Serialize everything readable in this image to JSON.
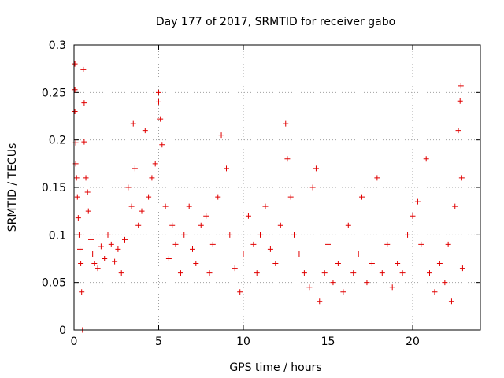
{
  "chart_data": {
    "type": "scatter",
    "title": "Day 177 of 2017, SRMTID for receiver gabo",
    "xlabel": "GPS time / hours",
    "ylabel": "SRMTID / TECUs",
    "xlim": [
      0,
      24
    ],
    "ylim": [
      0,
      0.3
    ],
    "x_ticks": [
      0,
      5,
      10,
      15,
      20
    ],
    "x_tick_labels": [
      "0",
      "5",
      "10",
      "15",
      "20"
    ],
    "y_ticks": [
      0,
      0.05,
      0.1,
      0.15,
      0.2,
      0.25,
      0.3
    ],
    "y_tick_labels": [
      "0",
      "0.05",
      "0.1",
      "0.15",
      "0.2",
      "0.25",
      "0.3"
    ],
    "grid": true,
    "marker": "+",
    "series_color": "#e00000",
    "sample_points": [
      {
        "x": 0.05,
        "y": 0.28
      },
      {
        "x": 0.05,
        "y": 0.253
      },
      {
        "x": 0.05,
        "y": 0.23
      },
      {
        "x": 0.1,
        "y": 0.197
      },
      {
        "x": 0.1,
        "y": 0.175
      },
      {
        "x": 0.15,
        "y": 0.16
      },
      {
        "x": 0.2,
        "y": 0.14
      },
      {
        "x": 0.25,
        "y": 0.118
      },
      {
        "x": 0.3,
        "y": 0.1
      },
      {
        "x": 0.35,
        "y": 0.085
      },
      {
        "x": 0.4,
        "y": 0.07
      },
      {
        "x": 0.45,
        "y": 0.04
      },
      {
        "x": 0.55,
        "y": 0.274
      },
      {
        "x": 0.6,
        "y": 0.239
      },
      {
        "x": 0.6,
        "y": 0.198
      },
      {
        "x": 0.7,
        "y": 0.16
      },
      {
        "x": 0.8,
        "y": 0.145
      },
      {
        "x": 0.85,
        "y": 0.125
      },
      {
        "x": 1.0,
        "y": 0.095
      },
      {
        "x": 1.1,
        "y": 0.08
      },
      {
        "x": 1.2,
        "y": 0.07
      },
      {
        "x": 1.4,
        "y": 0.065
      },
      {
        "x": 1.6,
        "y": 0.088
      },
      {
        "x": 1.8,
        "y": 0.075
      },
      {
        "x": 2.0,
        "y": 0.1
      },
      {
        "x": 2.2,
        "y": 0.09
      },
      {
        "x": 2.4,
        "y": 0.072
      },
      {
        "x": 2.6,
        "y": 0.085
      },
      {
        "x": 2.8,
        "y": 0.06
      },
      {
        "x": 3.0,
        "y": 0.095
      },
      {
        "x": 3.2,
        "y": 0.15
      },
      {
        "x": 3.4,
        "y": 0.13
      },
      {
        "x": 3.5,
        "y": 0.217
      },
      {
        "x": 3.6,
        "y": 0.17
      },
      {
        "x": 3.8,
        "y": 0.11
      },
      {
        "x": 4.0,
        "y": 0.125
      },
      {
        "x": 4.2,
        "y": 0.21
      },
      {
        "x": 4.4,
        "y": 0.14
      },
      {
        "x": 4.6,
        "y": 0.16
      },
      {
        "x": 4.8,
        "y": 0.175
      },
      {
        "x": 5.0,
        "y": 0.25
      },
      {
        "x": 5.0,
        "y": 0.24
      },
      {
        "x": 5.1,
        "y": 0.222
      },
      {
        "x": 5.2,
        "y": 0.195
      },
      {
        "x": 5.4,
        "y": 0.13
      },
      {
        "x": 5.6,
        "y": 0.075
      },
      {
        "x": 5.8,
        "y": 0.11
      },
      {
        "x": 6.0,
        "y": 0.09
      },
      {
        "x": 6.3,
        "y": 0.06
      },
      {
        "x": 6.5,
        "y": 0.1
      },
      {
        "x": 6.8,
        "y": 0.13
      },
      {
        "x": 7.0,
        "y": 0.085
      },
      {
        "x": 7.2,
        "y": 0.07
      },
      {
        "x": 7.5,
        "y": 0.11
      },
      {
        "x": 7.8,
        "y": 0.12
      },
      {
        "x": 8.0,
        "y": 0.06
      },
      {
        "x": 8.2,
        "y": 0.09
      },
      {
        "x": 8.5,
        "y": 0.14
      },
      {
        "x": 8.7,
        "y": 0.205
      },
      {
        "x": 9.0,
        "y": 0.17
      },
      {
        "x": 9.2,
        "y": 0.1
      },
      {
        "x": 9.5,
        "y": 0.065
      },
      {
        "x": 9.8,
        "y": 0.04
      },
      {
        "x": 10.0,
        "y": 0.08
      },
      {
        "x": 10.3,
        "y": 0.12
      },
      {
        "x": 10.6,
        "y": 0.09
      },
      {
        "x": 10.8,
        "y": 0.06
      },
      {
        "x": 11.0,
        "y": 0.1
      },
      {
        "x": 11.3,
        "y": 0.13
      },
      {
        "x": 11.6,
        "y": 0.085
      },
      {
        "x": 11.9,
        "y": 0.07
      },
      {
        "x": 12.2,
        "y": 0.11
      },
      {
        "x": 12.5,
        "y": 0.217
      },
      {
        "x": 12.6,
        "y": 0.18
      },
      {
        "x": 12.8,
        "y": 0.14
      },
      {
        "x": 13.0,
        "y": 0.1
      },
      {
        "x": 13.3,
        "y": 0.08
      },
      {
        "x": 13.6,
        "y": 0.06
      },
      {
        "x": 13.9,
        "y": 0.045
      },
      {
        "x": 14.1,
        "y": 0.15
      },
      {
        "x": 14.3,
        "y": 0.17
      },
      {
        "x": 14.5,
        "y": 0.03
      },
      {
        "x": 14.8,
        "y": 0.06
      },
      {
        "x": 15.0,
        "y": 0.09
      },
      {
        "x": 15.3,
        "y": 0.05
      },
      {
        "x": 15.6,
        "y": 0.07
      },
      {
        "x": 15.9,
        "y": 0.04
      },
      {
        "x": 16.2,
        "y": 0.11
      },
      {
        "x": 16.5,
        "y": 0.06
      },
      {
        "x": 16.8,
        "y": 0.08
      },
      {
        "x": 17.0,
        "y": 0.14
      },
      {
        "x": 17.3,
        "y": 0.05
      },
      {
        "x": 17.6,
        "y": 0.07
      },
      {
        "x": 17.9,
        "y": 0.16
      },
      {
        "x": 18.2,
        "y": 0.06
      },
      {
        "x": 18.5,
        "y": 0.09
      },
      {
        "x": 18.8,
        "y": 0.045
      },
      {
        "x": 19.1,
        "y": 0.07
      },
      {
        "x": 19.4,
        "y": 0.06
      },
      {
        "x": 19.7,
        "y": 0.1
      },
      {
        "x": 20.0,
        "y": 0.12
      },
      {
        "x": 20.3,
        "y": 0.135
      },
      {
        "x": 20.5,
        "y": 0.09
      },
      {
        "x": 20.8,
        "y": 0.18
      },
      {
        "x": 21.0,
        "y": 0.06
      },
      {
        "x": 21.3,
        "y": 0.04
      },
      {
        "x": 21.6,
        "y": 0.07
      },
      {
        "x": 21.9,
        "y": 0.05
      },
      {
        "x": 22.1,
        "y": 0.09
      },
      {
        "x": 22.3,
        "y": 0.03
      },
      {
        "x": 22.5,
        "y": 0.13
      },
      {
        "x": 22.7,
        "y": 0.21
      },
      {
        "x": 22.8,
        "y": 0.241
      },
      {
        "x": 22.85,
        "y": 0.257
      },
      {
        "x": 22.9,
        "y": 0.16
      },
      {
        "x": 22.95,
        "y": 0.065
      },
      {
        "x": 0.5,
        "y": 0.0
      }
    ]
  }
}
